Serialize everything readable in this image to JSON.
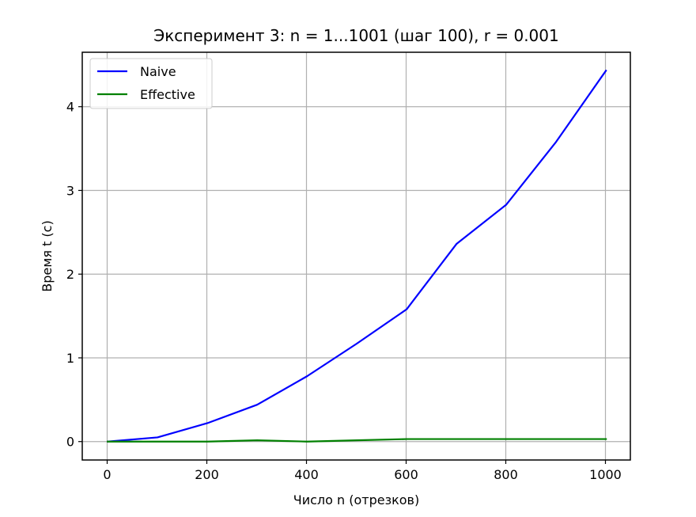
{
  "chart_data": {
    "type": "line",
    "title": "Эксперимент 3: n = 1...1001 (шаг 100), r = 0.001",
    "xlabel": "Число n (отрезков)",
    "ylabel": "Время t (с)",
    "xlim": [
      -50,
      1050
    ],
    "ylim": [
      -0.22,
      4.65
    ],
    "xticks": [
      0,
      200,
      400,
      600,
      800,
      1000
    ],
    "yticks": [
      0,
      1,
      2,
      3,
      4
    ],
    "grid": true,
    "legend_position": "top-left",
    "series": [
      {
        "name": "Naive",
        "color": "#0000ff",
        "x": [
          1,
          101,
          201,
          301,
          401,
          501,
          601,
          701,
          801,
          901,
          1001
        ],
        "y": [
          0.0,
          0.05,
          0.22,
          0.44,
          0.78,
          1.17,
          1.58,
          2.36,
          2.83,
          3.58,
          4.43
        ]
      },
      {
        "name": "Effective",
        "color": "#008000",
        "x": [
          1,
          101,
          201,
          301,
          401,
          501,
          601,
          701,
          801,
          901,
          1001
        ],
        "y": [
          0.0,
          0.0,
          0.0,
          0.015,
          0.0,
          0.015,
          0.03,
          0.03,
          0.03,
          0.03,
          0.03
        ]
      }
    ]
  }
}
